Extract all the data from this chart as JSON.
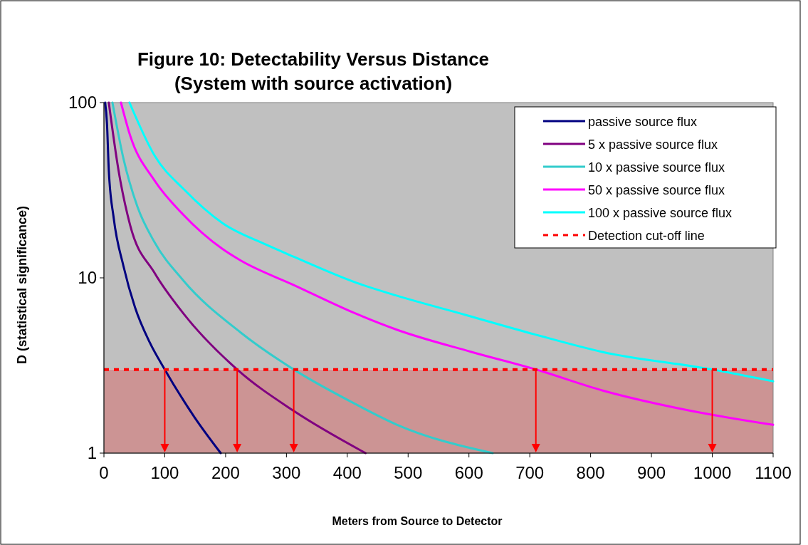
{
  "chart_data": {
    "type": "line",
    "title": "Figure 10: Detectability Versus Distance",
    "subtitle": "(System with source activation)",
    "xlabel": "Meters from Source to Detector",
    "ylabel": "D (statistical significance)",
    "xlim": [
      0,
      1100
    ],
    "xticks": [
      0,
      100,
      200,
      300,
      400,
      500,
      600,
      700,
      800,
      900,
      1000,
      1100
    ],
    "ylim": [
      1,
      100
    ],
    "yticks": [
      1,
      10,
      100
    ],
    "log": "y",
    "grid": false,
    "legend": "top right",
    "line_style": "solid",
    "series": [
      {
        "name": "passive source flux",
        "color": "#000080",
        "x": [
          2,
          5,
          8,
          16,
          32,
          51,
          75,
          100,
          149,
          192
        ],
        "values": [
          100,
          76,
          41,
          22,
          11.7,
          6.8,
          4.3,
          3,
          1.6,
          1
        ]
      },
      {
        "name": "5 x passive source flux",
        "color": "#800080",
        "x": [
          8,
          24,
          43,
          83,
          130,
          219,
          312,
          430
        ],
        "values": [
          100,
          41,
          20,
          10.7,
          6.3,
          3,
          1.74,
          1
        ]
      },
      {
        "name": "10 x passive source flux",
        "color": "#33cccc",
        "x": [
          14,
          32,
          55,
          83,
          130,
          224,
          312,
          414,
          482,
          639
        ],
        "values": [
          100,
          48,
          25.5,
          16,
          9.7,
          4.9,
          3,
          1.9,
          1.45,
          1
        ]
      },
      {
        "name": "50 x passive source flux",
        "color": "#ff00ff",
        "x": [
          28,
          43,
          83,
          130,
          195,
          224,
          312,
          414,
          482,
          604,
          710,
          819,
          955,
          1100
        ],
        "values": [
          100,
          65,
          36,
          23,
          14.6,
          12.6,
          9.1,
          6.25,
          5.05,
          3.78,
          3,
          2.28,
          1.77,
          1.45
        ]
      },
      {
        "name": "100 x passive source flux",
        "color": "#00ffff",
        "x": [
          42,
          83,
          133,
          195,
          266,
          312,
          414,
          482,
          594,
          707,
          819,
          1000,
          1100
        ],
        "values": [
          100,
          50,
          31.6,
          20.5,
          15.5,
          13.2,
          9.4,
          7.9,
          6.15,
          4.77,
          3.78,
          3,
          2.57
        ]
      }
    ],
    "ref_lines": [
      {
        "axis": "y",
        "value": 3,
        "label": "Detection cut-off line",
        "color": "#ff0000",
        "line_style": "dashed"
      }
    ],
    "bands": [
      {
        "axis": "y",
        "from": 3,
        "to": 100,
        "color": "#c0c0c0"
      },
      {
        "axis": "y",
        "from": 1,
        "to": 3,
        "color": "#cc9494"
      }
    ]
  }
}
